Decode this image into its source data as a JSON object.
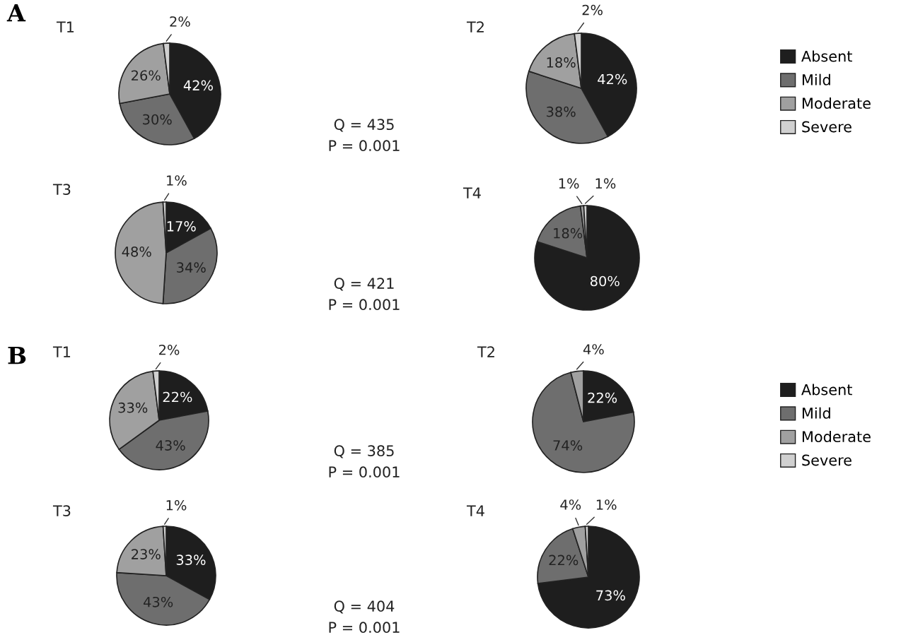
{
  "chart_data": [
    {
      "type": "pie",
      "title": "T1",
      "categories": [
        "Absent",
        "Mild",
        "Moderate",
        "Severe"
      ],
      "values": [
        42,
        30,
        26,
        2
      ],
      "value_labels": [
        "42%",
        "30%",
        "26%",
        "2%"
      ],
      "colors": [
        "#1e1e1e",
        "#6e6e6e",
        "#a0a0a0",
        "#d0d0d0"
      ],
      "annotations": [
        "A",
        "Q = 435",
        "P = 0.001"
      ],
      "legend": "right"
    },
    {
      "type": "pie",
      "title": "T2",
      "values": [
        42,
        38,
        18,
        2
      ],
      "value_labels": [
        "42%",
        "38%",
        "18%",
        "2%"
      ],
      "colors": [
        "#1e1e1e",
        "#6e6e6e",
        "#a0a0a0",
        "#d0d0d0"
      ]
    },
    {
      "type": "pie",
      "title": "T3",
      "values": [
        17,
        34,
        48,
        1
      ],
      "value_labels": [
        "17%",
        "34%",
        "48%",
        "1%"
      ],
      "colors": [
        "#1e1e1e",
        "#6e6e6e",
        "#a0a0a0",
        "#d0d0d0"
      ],
      "annotations": [
        "Q = 421",
        "P = 0.001"
      ]
    },
    {
      "type": "pie",
      "title": "T4",
      "values": [
        80,
        18,
        1,
        1
      ],
      "value_labels": [
        "80%",
        "18%",
        "1%",
        "1%"
      ],
      "colors": [
        "#1e1e1e",
        "#6e6e6e",
        "#a0a0a0",
        "#d0d0d0"
      ]
    },
    {
      "type": "pie",
      "title": "T1",
      "categories": [
        "Absent",
        "Mild",
        "Moderate",
        "Severe"
      ],
      "values": [
        22,
        43,
        33,
        2
      ],
      "value_labels": [
        "22%",
        "43%",
        "33%",
        "2%"
      ],
      "colors": [
        "#1e1e1e",
        "#6e6e6e",
        "#a0a0a0",
        "#d0d0d0"
      ],
      "annotations": [
        "B",
        "Q = 385",
        "P = 0.001"
      ],
      "legend": "right"
    },
    {
      "type": "pie",
      "title": "T2",
      "values": [
        22,
        74,
        4,
        0
      ],
      "value_labels": [
        "22%",
        "74%",
        "4%",
        null
      ],
      "colors": [
        "#1e1e1e",
        "#6e6e6e",
        "#a0a0a0",
        "#d0d0d0"
      ]
    },
    {
      "type": "pie",
      "title": "T3",
      "values": [
        33,
        43,
        23,
        1
      ],
      "value_labels": [
        "33%",
        "43%",
        "23%",
        "1%"
      ],
      "colors": [
        "#1e1e1e",
        "#6e6e6e",
        "#a0a0a0",
        "#d0d0d0"
      ],
      "annotations": [
        "Q = 404",
        "P = 0.001"
      ]
    },
    {
      "type": "pie",
      "title": "T4",
      "values": [
        73,
        22,
        4,
        1
      ],
      "value_labels": [
        "73%",
        "22%",
        "4%",
        "1%"
      ],
      "colors": [
        "#1e1e1e",
        "#6e6e6e",
        "#a0a0a0",
        "#d0d0d0"
      ]
    }
  ]
}
